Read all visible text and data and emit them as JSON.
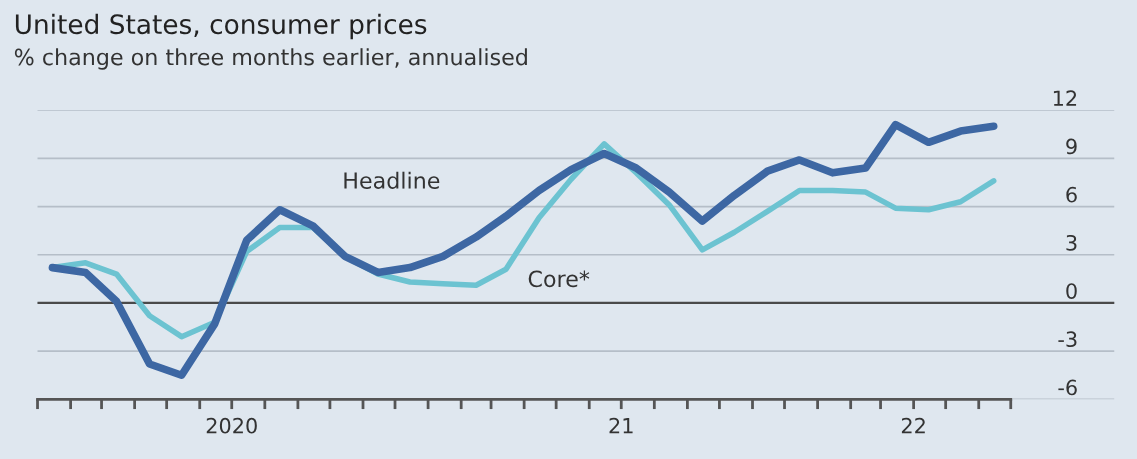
{
  "chart_data": {
    "type": "line",
    "title": "United States, consumer prices",
    "subtitle": "% change on three months earlier, annualised",
    "x": [
      "2020-01-15",
      "2020-02-15",
      "2020-03-15",
      "2020-04-15",
      "2020-05-15",
      "2020-06-15",
      "2020-07-15",
      "2020-08-15",
      "2020-09-15",
      "2020-10-15",
      "2020-11-15",
      "2020-12-15",
      "2021-01-15",
      "2021-02-15",
      "2021-03-15",
      "2021-04-15",
      "2021-05-15",
      "2021-06-15",
      "2021-07-15",
      "2021-08-15",
      "2021-09-15",
      "2021-10-15",
      "2021-11-15",
      "2021-12-15",
      "2022-01-15",
      "2022-02-15",
      "2022-03-15",
      "2022-04-15",
      "2022-05-15",
      "2022-06-15"
    ],
    "series": [
      {
        "name": "Core*",
        "color": "#6cc3d1",
        "values": [
          2.2,
          2.5,
          1.8,
          -0.8,
          -2.1,
          -1.2,
          3.2,
          4.7,
          4.7,
          2.9,
          1.8,
          1.3,
          1.2,
          1.1,
          2.1,
          5.3,
          7.7,
          9.9,
          8.1,
          6.1,
          3.3,
          4.4,
          5.7,
          7.0,
          7.0,
          6.9,
          5.9,
          5.8,
          6.3,
          7.6
        ]
      },
      {
        "name": "Headline",
        "color": "#3d67a3",
        "values": [
          2.2,
          1.9,
          0.1,
          -3.8,
          -4.5,
          -1.3,
          3.9,
          5.8,
          4.8,
          2.9,
          1.9,
          2.2,
          2.9,
          4.1,
          5.4,
          7.0,
          8.3,
          9.3,
          8.4,
          6.9,
          5.1,
          6.7,
          8.2,
          8.9,
          8.1,
          8.4,
          11.1,
          10.0,
          10.7,
          11.0
        ]
      }
    ],
    "xlim": [
      "2020-01-01",
      "2022-10-06"
    ],
    "xticks": [
      {
        "value": "2020-01-01",
        "label": null
      },
      {
        "value": "2020-02-01",
        "label": null
      },
      {
        "value": "2020-03-01",
        "label": null
      },
      {
        "value": "2020-04-01",
        "label": null
      },
      {
        "value": "2020-05-01",
        "label": null
      },
      {
        "value": "2020-06-01",
        "label": null
      },
      {
        "value": "2020-07-01",
        "label": "2020"
      },
      {
        "value": "2020-08-01",
        "label": null
      },
      {
        "value": "2020-09-01",
        "label": null
      },
      {
        "value": "2020-10-01",
        "label": null
      },
      {
        "value": "2020-11-01",
        "label": null
      },
      {
        "value": "2020-12-01",
        "label": null
      },
      {
        "value": "2021-01-01",
        "label": null
      },
      {
        "value": "2021-02-01",
        "label": null
      },
      {
        "value": "2021-03-01",
        "label": null
      },
      {
        "value": "2021-04-01",
        "label": null
      },
      {
        "value": "2021-05-01",
        "label": null
      },
      {
        "value": "2021-06-01",
        "label": null
      },
      {
        "value": "2021-07-01",
        "label": "21"
      },
      {
        "value": "2021-08-01",
        "label": null
      },
      {
        "value": "2021-09-01",
        "label": null
      },
      {
        "value": "2021-10-01",
        "label": null
      },
      {
        "value": "2021-11-01",
        "label": null
      },
      {
        "value": "2021-12-01",
        "label": null
      },
      {
        "value": "2022-01-01",
        "label": null
      },
      {
        "value": "2022-02-01",
        "label": null
      },
      {
        "value": "2022-03-01",
        "label": null
      },
      {
        "value": "2022-04-01",
        "label": "22"
      },
      {
        "value": "2022-05-01",
        "label": null
      },
      {
        "value": "2022-06-01",
        "label": null
      },
      {
        "value": "2022-07-01",
        "label": null
      }
    ],
    "ylim": [
      -6,
      12
    ],
    "yticks": [
      -6,
      -3,
      0,
      3,
      6,
      9,
      12
    ],
    "ref_lines": [
      {
        "axis": "y",
        "value": 0,
        "label": null,
        "color": "#4a4a4a"
      }
    ],
    "grid": "y",
    "legend": false,
    "line_style": "solid",
    "marker": "none"
  }
}
